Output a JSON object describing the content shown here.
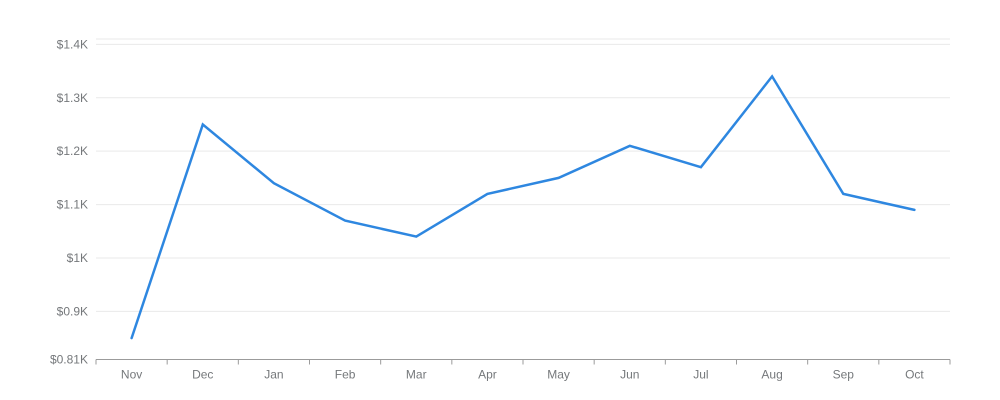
{
  "chart_data": {
    "type": "line",
    "title": "",
    "x_axis": {
      "labels": [
        "Nov",
        "Dec",
        "Jan",
        "Feb",
        "Mar",
        "Apr",
        "May",
        "Jun",
        "Jul",
        "Aug",
        "Sep",
        "Oct"
      ]
    },
    "y_axis": {
      "min": 810,
      "max": 1410,
      "top_boundary_value": 1410,
      "ticks": [
        {
          "label": "$1.4K",
          "value": 1400
        },
        {
          "label": "$1.3K",
          "value": 1300
        },
        {
          "label": "$1.2K",
          "value": 1200
        },
        {
          "label": "$1.1K",
          "value": 1100
        },
        {
          "label": "$1K",
          "value": 1000
        },
        {
          "label": "$0.9K",
          "value": 900
        },
        {
          "label": "$0.81K",
          "value": 810
        }
      ]
    },
    "series": [
      {
        "values": [
          850,
          1250,
          1140,
          1070,
          1040,
          1120,
          1150,
          1210,
          1170,
          1340,
          1120,
          1090
        ]
      }
    ],
    "grid": true,
    "legend": "none",
    "colors": {
      "line": "#2e87e0",
      "grid": "#e9e9e9",
      "axis": "#9b9b9b",
      "label": "#75787b"
    }
  }
}
